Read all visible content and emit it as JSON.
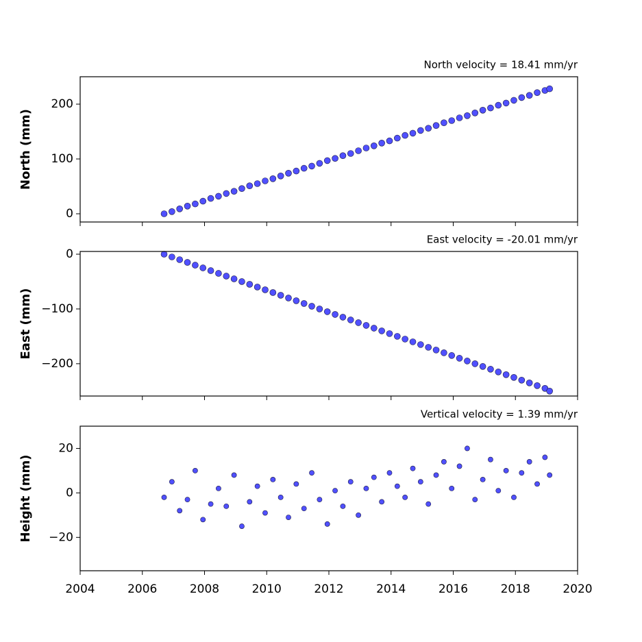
{
  "chart_data": [
    {
      "type": "scatter",
      "title": "North velocity = 18.41 mm/yr",
      "y_label": "North (mm)",
      "color": "#5050ff",
      "x": [
        2006.7,
        2006.95,
        2007.2,
        2007.45,
        2007.7,
        2007.95,
        2008.2,
        2008.45,
        2008.7,
        2008.95,
        2009.2,
        2009.45,
        2009.7,
        2009.95,
        2010.2,
        2010.45,
        2010.7,
        2010.95,
        2011.2,
        2011.45,
        2011.7,
        2011.95,
        2012.2,
        2012.45,
        2012.7,
        2012.95,
        2013.2,
        2013.45,
        2013.7,
        2013.95,
        2014.2,
        2014.45,
        2014.7,
        2014.95,
        2015.2,
        2015.45,
        2015.7,
        2015.95,
        2016.2,
        2016.45,
        2016.7,
        2016.95,
        2017.2,
        2017.45,
        2017.7,
        2017.95,
        2018.2,
        2018.45,
        2018.7,
        2018.95,
        2019.1
      ],
      "values": [
        0,
        4,
        9,
        14,
        18,
        23,
        28,
        32,
        37,
        41,
        46,
        51,
        55,
        60,
        64,
        69,
        74,
        78,
        83,
        87,
        92,
        97,
        101,
        106,
        110,
        115,
        120,
        124,
        129,
        133,
        138,
        143,
        147,
        152,
        156,
        161,
        166,
        170,
        175,
        179,
        184,
        189,
        193,
        198,
        202,
        207,
        212,
        216,
        221,
        225,
        228
      ],
      "xlim": [
        2004,
        2020
      ],
      "xticks": [
        2004,
        2006,
        2008,
        2010,
        2012,
        2014,
        2016,
        2018,
        2020
      ],
      "ylim": [
        -15,
        250
      ],
      "yticks": [
        0,
        100,
        200
      ]
    },
    {
      "type": "scatter",
      "title": "East velocity = -20.01 mm/yr",
      "y_label": "East (mm)",
      "color": "#5050ff",
      "x": [
        2006.7,
        2006.95,
        2007.2,
        2007.45,
        2007.7,
        2007.95,
        2008.2,
        2008.45,
        2008.7,
        2008.95,
        2009.2,
        2009.45,
        2009.7,
        2009.95,
        2010.2,
        2010.45,
        2010.7,
        2010.95,
        2011.2,
        2011.45,
        2011.7,
        2011.95,
        2012.2,
        2012.45,
        2012.7,
        2012.95,
        2013.2,
        2013.45,
        2013.7,
        2013.95,
        2014.2,
        2014.45,
        2014.7,
        2014.95,
        2015.2,
        2015.45,
        2015.7,
        2015.95,
        2016.2,
        2016.45,
        2016.7,
        2016.95,
        2017.2,
        2017.45,
        2017.7,
        2017.95,
        2018.2,
        2018.45,
        2018.7,
        2018.95,
        2019.1
      ],
      "values": [
        0,
        -5,
        -10,
        -15,
        -20,
        -25,
        -30,
        -35,
        -40,
        -45,
        -50,
        -55,
        -60,
        -65,
        -70,
        -75,
        -80,
        -85,
        -90,
        -95,
        -100,
        -105,
        -110,
        -115,
        -120,
        -125,
        -130,
        -135,
        -140,
        -145,
        -150,
        -155,
        -160,
        -165,
        -170,
        -175,
        -180,
        -185,
        -190,
        -195,
        -200,
        -205,
        -210,
        -215,
        -220,
        -225,
        -230,
        -235,
        -240,
        -245,
        -250
      ],
      "xlim": [
        2004,
        2020
      ],
      "xticks": [
        2004,
        2006,
        2008,
        2010,
        2012,
        2014,
        2016,
        2018,
        2020
      ],
      "ylim": [
        -259,
        5
      ],
      "yticks": [
        0,
        {
          "value": -100,
          "label": "−100"
        },
        {
          "value": -200,
          "label": "−200"
        }
      ]
    },
    {
      "type": "scatter",
      "title": "Vertical velocity = 1.39 mm/yr",
      "y_label": "Height (mm)",
      "color": "#5050ff",
      "x": [
        2006.7,
        2006.95,
        2007.2,
        2007.45,
        2007.7,
        2007.95,
        2008.2,
        2008.45,
        2008.7,
        2008.95,
        2009.2,
        2009.45,
        2009.7,
        2009.95,
        2010.2,
        2010.45,
        2010.7,
        2010.95,
        2011.2,
        2011.45,
        2011.7,
        2011.95,
        2012.2,
        2012.45,
        2012.7,
        2012.95,
        2013.2,
        2013.45,
        2013.7,
        2013.95,
        2014.2,
        2014.45,
        2014.7,
        2014.95,
        2015.2,
        2015.45,
        2015.7,
        2015.95,
        2016.2,
        2016.45,
        2016.7,
        2016.95,
        2017.2,
        2017.45,
        2017.7,
        2017.95,
        2018.2,
        2018.45,
        2018.7,
        2018.95,
        2019.1
      ],
      "values": [
        -2,
        5,
        -8,
        -3,
        10,
        -12,
        -5,
        2,
        -6,
        8,
        -15,
        -4,
        3,
        -9,
        6,
        -2,
        -11,
        4,
        -7,
        9,
        -3,
        -14,
        1,
        -6,
        5,
        -10,
        2,
        7,
        -4,
        9,
        3,
        -2,
        11,
        5,
        -5,
        8,
        14,
        2,
        12,
        20,
        -3,
        6,
        15,
        1,
        10,
        -2,
        9,
        14,
        4,
        16,
        8
      ],
      "xlim": [
        2004,
        2020
      ],
      "xticks": [
        2004,
        2006,
        2008,
        2010,
        2012,
        2014,
        2016,
        2018,
        2020
      ],
      "show_xtick_labels": true,
      "ylim": [
        -35,
        30
      ],
      "yticks": [
        {
          "value": -20,
          "label": "−20"
        },
        0,
        20
      ]
    }
  ]
}
